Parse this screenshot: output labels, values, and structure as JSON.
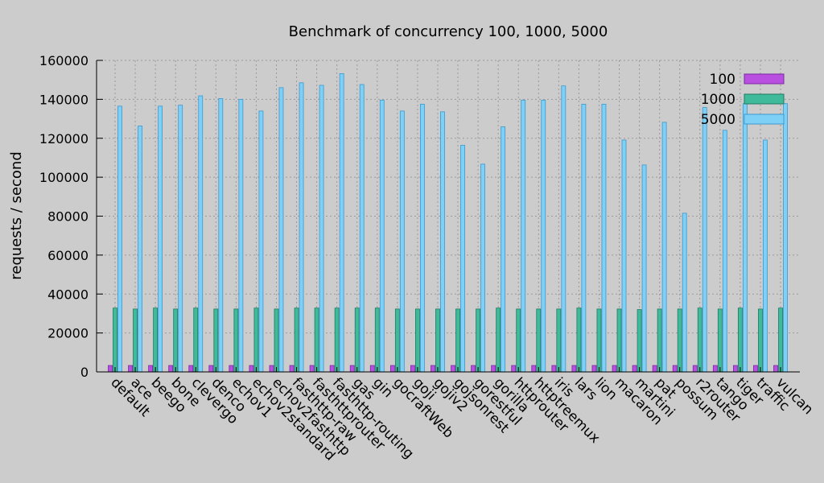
{
  "chart_data": {
    "type": "bar",
    "title": "Benchmark of concurrency 100, 1000, 5000",
    "xlabel": "",
    "ylabel": "requests / second",
    "ylim": [
      0,
      160000
    ],
    "yticks": [
      0,
      20000,
      40000,
      60000,
      80000,
      100000,
      120000,
      140000,
      160000
    ],
    "grid": true,
    "legend_position": "top-right",
    "categories": [
      "default",
      "ace",
      "beego",
      "bone",
      "clevergo",
      "denco",
      "echov1",
      "echov2standard",
      "echov2fasthttp",
      "fasthttp-raw",
      "fasthttprouter",
      "fasthttp-routing",
      "gas",
      "gin",
      "gocraftWeb",
      "goji",
      "gojiv2",
      "gojsonrest",
      "gorestful",
      "gorilla",
      "httprouter",
      "httptreemux",
      "iris",
      "lars",
      "lion",
      "macaron",
      "martini",
      "pat",
      "possum",
      "r2router",
      "tango",
      "tiger",
      "traffic",
      "vulcan"
    ],
    "series": [
      {
        "name": "100",
        "color": "#b84fe0",
        "border": "#7a2aa0",
        "values": [
          3300,
          3300,
          3300,
          3300,
          3300,
          3300,
          3300,
          3300,
          3300,
          3300,
          3300,
          3300,
          3300,
          3300,
          3300,
          3300,
          3300,
          3300,
          3300,
          3300,
          3300,
          3300,
          3300,
          3300,
          3300,
          3300,
          3300,
          3300,
          3300,
          3300,
          3300,
          3300,
          3300,
          3300
        ]
      },
      {
        "name": "1000",
        "color": "#3fba9a",
        "border": "#1f7a62",
        "values": [
          32800,
          32300,
          32800,
          32300,
          32800,
          32300,
          32300,
          32800,
          32300,
          32800,
          32800,
          32800,
          32800,
          32800,
          32300,
          32300,
          32300,
          32300,
          32300,
          32800,
          32300,
          32300,
          32300,
          32800,
          32300,
          32300,
          32000,
          32300,
          32300,
          32800,
          32300,
          32800,
          32300,
          32800
        ]
      },
      {
        "name": "5000",
        "color": "#7fd0f7",
        "border": "#3d98cc",
        "values": [
          136500,
          126300,
          136500,
          137000,
          141800,
          140400,
          140000,
          134000,
          146000,
          148500,
          147200,
          153200,
          147600,
          139600,
          134000,
          137500,
          133600,
          116400,
          106700,
          125900,
          139600,
          139600,
          146900,
          137500,
          137500,
          119100,
          106300,
          128200,
          81500,
          135800,
          124100,
          137800,
          119100,
          137800
        ]
      }
    ]
  }
}
